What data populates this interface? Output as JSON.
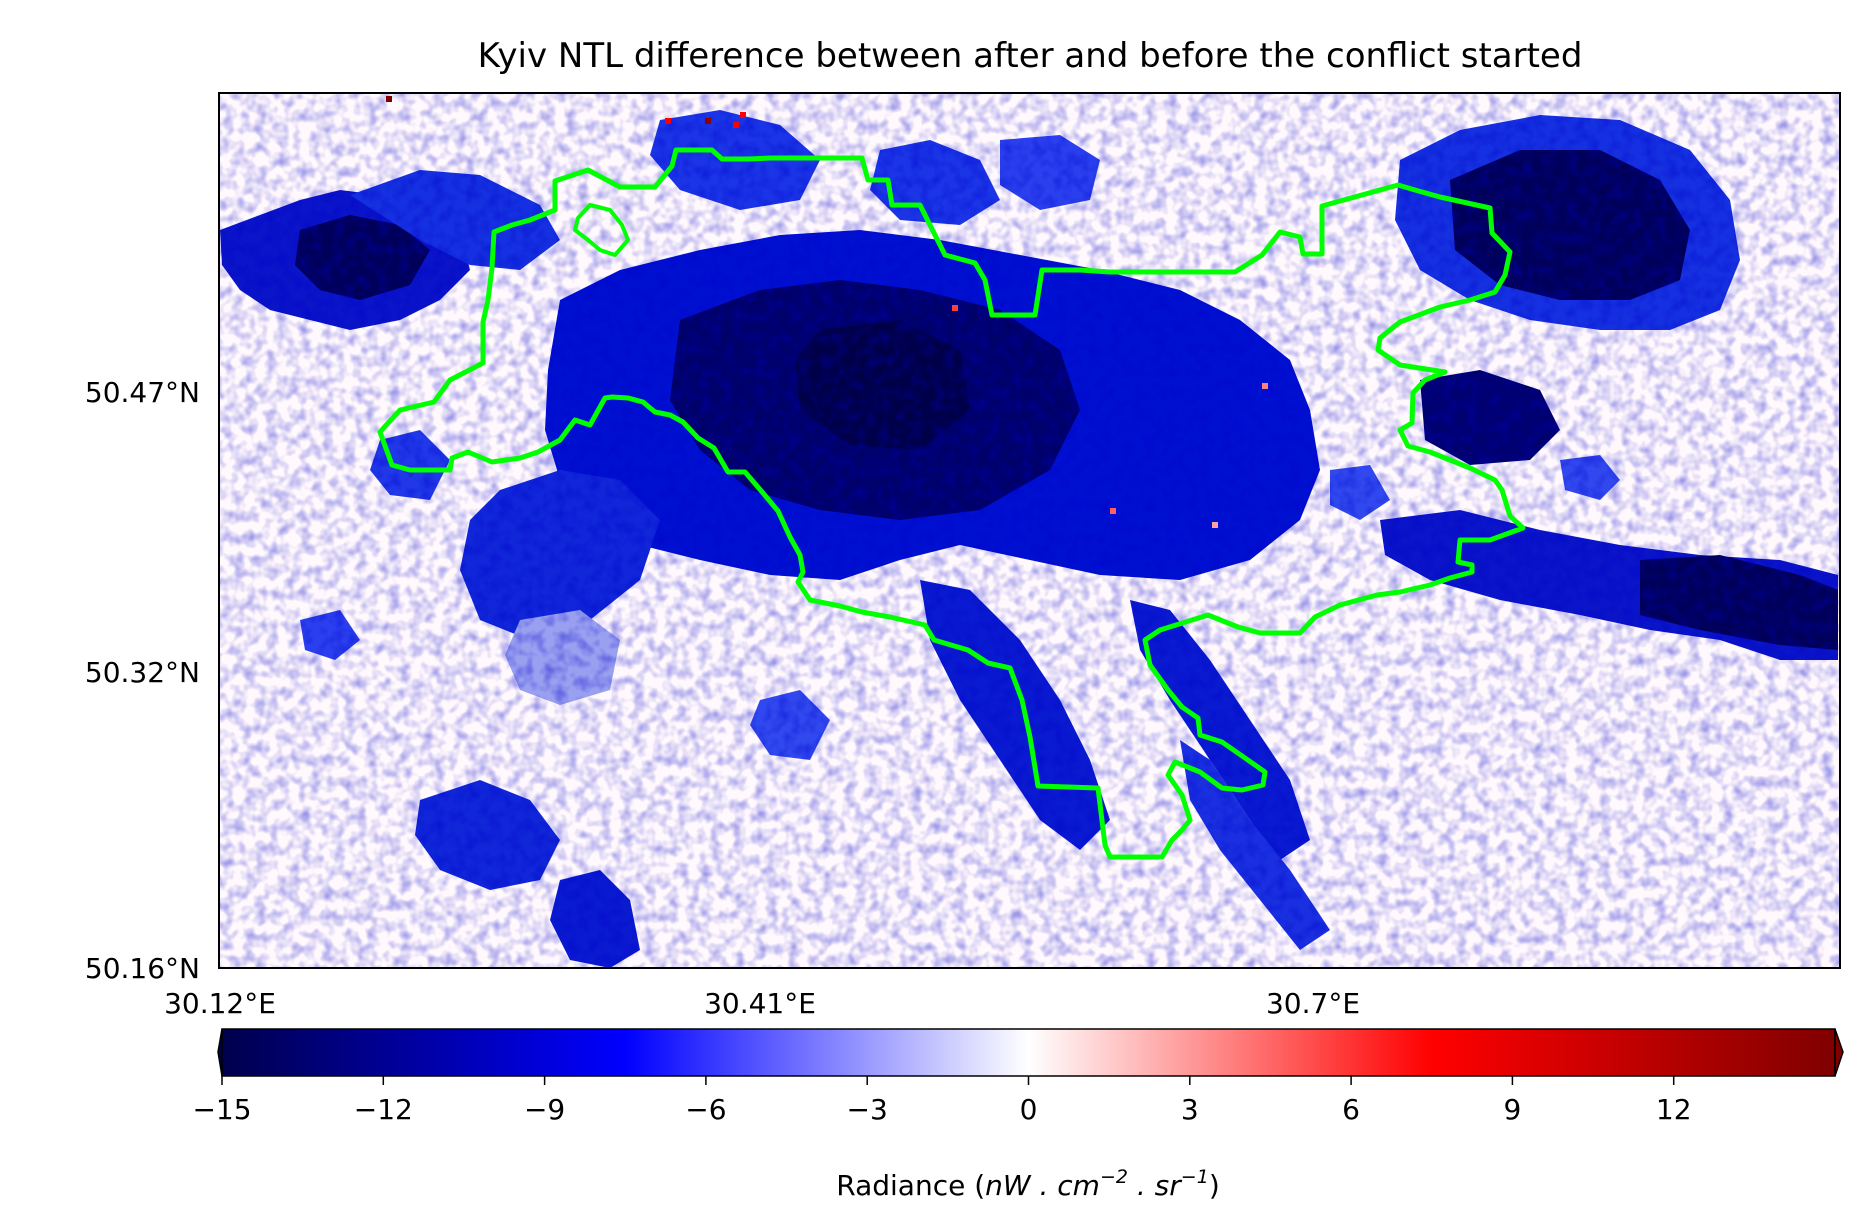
{
  "title": "Kyiv NTL difference between after and before the conflict started",
  "map": {
    "lat_ticks": [
      "50.47°N",
      "50.32°N",
      "50.16°N"
    ],
    "lon_ticks": [
      "30.12°E",
      "30.41°E",
      "30.7°E"
    ],
    "background_color": "#fff8fc",
    "boundary_color": "#00ff00"
  },
  "colorbar": {
    "min": -15,
    "max": 15,
    "ticks": [
      "−15",
      "−12",
      "−9",
      "−6",
      "−3",
      "0",
      "3",
      "6",
      "9",
      "12"
    ],
    "label_text": "Radiance (",
    "label_math": "nW . cm",
    "label_exp1": "−2",
    "label_mid": " . sr",
    "label_exp2": "−1",
    "label_close": ")",
    "colormap": [
      "#00004c",
      "#0000ff",
      "#ffffff",
      "#ff0000",
      "#800000"
    ]
  }
}
